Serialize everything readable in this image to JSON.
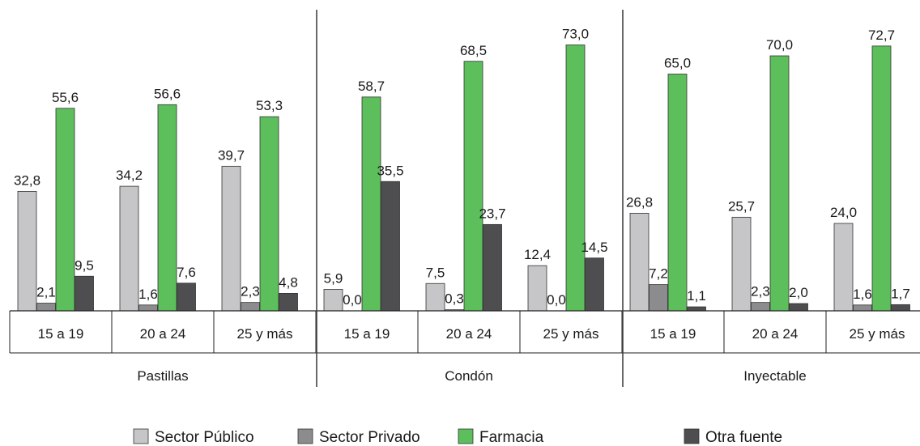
{
  "chart_data": {
    "type": "bar",
    "title": "",
    "xlabel": "",
    "ylabel": "",
    "ylim": [
      0,
      80
    ],
    "grid": false,
    "legend_position": "bottom",
    "groups": [
      {
        "name": "Pastillas",
        "categories": [
          "15 a 19",
          "20 a 24",
          "25 y más"
        ],
        "values": [
          [
            32.8,
            2.1,
            55.6,
            9.5
          ],
          [
            34.2,
            1.6,
            56.6,
            7.6
          ],
          [
            39.7,
            2.3,
            53.3,
            4.8
          ]
        ],
        "labels": [
          [
            "32,8",
            "2,1",
            "55,6",
            "9,5"
          ],
          [
            "34,2",
            "1,6",
            "56,6",
            "7,6"
          ],
          [
            "39,7",
            "2,3",
            "53,3",
            "4,8"
          ]
        ]
      },
      {
        "name": "Condón",
        "categories": [
          "15 a 19",
          "20 a 24",
          "25 y más"
        ],
        "values": [
          [
            5.9,
            0.0,
            58.7,
            35.5
          ],
          [
            7.5,
            0.3,
            68.5,
            23.7
          ],
          [
            12.4,
            0.0,
            73.0,
            14.5
          ]
        ],
        "labels": [
          [
            "5,9",
            "0,0",
            "58,7",
            "35,5"
          ],
          [
            "7,5",
            "0,3",
            "68,5",
            "23,7"
          ],
          [
            "12,4",
            "0,0",
            "73,0",
            "14,5"
          ]
        ]
      },
      {
        "name": "Inyectable",
        "categories": [
          "15 a 19",
          "20 a 24",
          "25 y más"
        ],
        "values": [
          [
            26.8,
            7.2,
            65.0,
            1.1
          ],
          [
            25.7,
            2.3,
            70.0,
            2.0
          ],
          [
            24.0,
            1.6,
            72.7,
            1.7
          ]
        ],
        "labels": [
          [
            "26,8",
            "7,2",
            "65,0",
            "1,1"
          ],
          [
            "25,7",
            "2,3",
            "70,0",
            "2,0"
          ],
          [
            "24,0",
            "1,6",
            "72,7",
            "1,7"
          ]
        ]
      }
    ],
    "series": [
      {
        "name": "Sector Público",
        "color": "#c6c6c8"
      },
      {
        "name": "Sector Privado",
        "color": "#8c8c8e"
      },
      {
        "name": "Farmacia",
        "color": "#5cbf5c"
      },
      {
        "name": "Otra fuente",
        "color": "#4e4e50"
      }
    ]
  }
}
